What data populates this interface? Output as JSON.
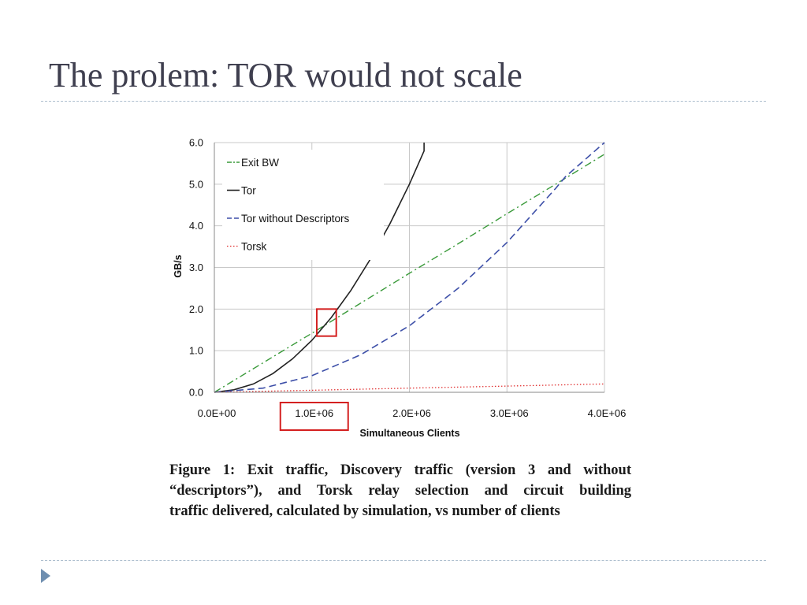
{
  "slide": {
    "title": "The prolem: TOR would not scale"
  },
  "caption": {
    "lines": [
      "Figure 1:  Exit traffic, Discovery traffic (version 3 and without",
      "“descriptors”), and Torsk relay selection and circuit building",
      "traffic delivered, calculated by simulation, vs number of clients"
    ]
  },
  "chart_data": {
    "type": "line",
    "xlabel": "Simultaneous Clients",
    "ylabel": "GB/s",
    "xlim": [
      0,
      4000000
    ],
    "ylim": [
      0,
      6
    ],
    "x_ticks": [
      {
        "value": 0,
        "label": "0.0E+00"
      },
      {
        "value": 1000000,
        "label": "1.0E+06"
      },
      {
        "value": 2000000,
        "label": "2.0E+06"
      },
      {
        "value": 3000000,
        "label": "3.0E+06"
      },
      {
        "value": 4000000,
        "label": "4.0E+06"
      }
    ],
    "y_ticks": [
      {
        "value": 0,
        "label": "0.0"
      },
      {
        "value": 1,
        "label": "1.0"
      },
      {
        "value": 2,
        "label": "2.0"
      },
      {
        "value": 3,
        "label": "3.0"
      },
      {
        "value": 4,
        "label": "4.0"
      },
      {
        "value": 5,
        "label": "5.0"
      },
      {
        "value": 6,
        "label": "6.0"
      }
    ],
    "grid": true,
    "legend_position": "top-left",
    "series": [
      {
        "name": "Exit BW",
        "color": "#3a9a3a",
        "dash": "dashdot",
        "x": [
          0,
          500000,
          1000000,
          1500000,
          2000000,
          2500000,
          3000000,
          3500000,
          4000000
        ],
        "y": [
          0,
          0.71,
          1.42,
          2.14,
          2.86,
          3.57,
          4.29,
          5.0,
          5.72
        ]
      },
      {
        "name": "Tor",
        "color": "#222222",
        "dash": "solid",
        "x": [
          0,
          200000,
          400000,
          600000,
          800000,
          1000000,
          1200000,
          1400000,
          1600000,
          1800000,
          2000000,
          2150000,
          2150000
        ],
        "y": [
          0,
          0.06,
          0.2,
          0.45,
          0.8,
          1.25,
          1.8,
          2.45,
          3.2,
          4.05,
          5.0,
          5.8,
          6.0
        ]
      },
      {
        "name": "Tor without Descriptors",
        "color": "#3d4fa8",
        "dash": "dashed",
        "x": [
          0,
          500000,
          1000000,
          1500000,
          2000000,
          2500000,
          3000000,
          3500000,
          3600000,
          4000000
        ],
        "y": [
          0,
          0.1,
          0.4,
          0.9,
          1.6,
          2.5,
          3.6,
          4.9,
          5.18,
          6.0
        ]
      },
      {
        "name": "Torsk",
        "color": "#e03030",
        "dash": "dotted",
        "x": [
          0,
          1000000,
          2000000,
          3000000,
          4000000
        ],
        "y": [
          0,
          0.05,
          0.1,
          0.15,
          0.2
        ]
      }
    ],
    "annotations": [
      {
        "type": "highlight-box",
        "color": "#d42020",
        "x": [
          1050000,
          1250000
        ],
        "y": [
          1.35,
          2.0
        ]
      },
      {
        "type": "highlight-tick-label",
        "color": "#d42020",
        "target": "1.0E+06"
      }
    ]
  }
}
